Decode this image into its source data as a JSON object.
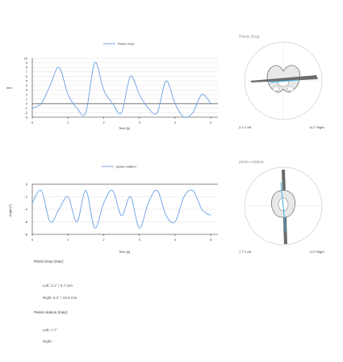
{
  "charts": [
    {
      "legend_label": "Pelvic Drop",
      "ylabel": "mm",
      "xlabel": "Time [s]",
      "x_ticks": [
        "0",
        "1",
        "2",
        "3",
        "4",
        "5"
      ],
      "y_ticks": [
        "10",
        "9",
        "8",
        "7",
        "6",
        "5",
        "4",
        "3",
        "2",
        "1",
        "0",
        "-1",
        "-2",
        "-3"
      ]
    },
    {
      "legend_label": "pelvis rotation",
      "ylabel": "Angle [°]",
      "xlabel": "Time [s]",
      "x_ticks": [
        "0",
        "1",
        "2",
        "3",
        "4",
        "5"
      ],
      "y_ticks": [
        "0",
        "-2",
        "-4",
        "-6",
        "-8"
      ]
    }
  ],
  "chart_data": [
    {
      "type": "line",
      "x": [
        0,
        0.25,
        0.5,
        0.75,
        1,
        1.25,
        1.5,
        1.75,
        2,
        2.25,
        2.5,
        2.75,
        3,
        3.25,
        3.5,
        3.75,
        4,
        4.25,
        4.5,
        4.75,
        5
      ],
      "series": [
        {
          "name": "Pelvic Drop",
          "values": [
            -1,
            0,
            4,
            8,
            2,
            -1,
            -2,
            9,
            3,
            0,
            -2,
            6,
            2,
            -1,
            -2,
            5,
            0,
            -3,
            -2,
            2,
            0
          ]
        }
      ],
      "xlabel": "Time [s]",
      "ylabel": "mm",
      "xlim": [
        0,
        5.2
      ],
      "ylim": [
        -3,
        10
      ]
    },
    {
      "type": "line",
      "x": [
        0,
        0.25,
        0.5,
        0.75,
        1,
        1.25,
        1.5,
        1.75,
        2,
        2.25,
        2.5,
        2.75,
        3,
        3.25,
        3.5,
        3.75,
        4,
        4.25,
        4.5,
        4.75,
        5
      ],
      "series": [
        {
          "name": "pelvis rotation",
          "values": [
            -3,
            -1,
            -6,
            -4,
            -2,
            -6,
            -1,
            -7,
            -3,
            -1,
            -5,
            -2,
            -7,
            -3,
            -1,
            -5,
            -6,
            -2,
            -1,
            -4,
            -5
          ]
        }
      ],
      "xlabel": "Time [s]",
      "ylabel": "Angle [°]",
      "xlim": [
        0,
        5.2
      ],
      "ylim": [
        -8,
        0
      ]
    }
  ],
  "gauges": [
    {
      "title": "Pelvic Drop",
      "left_label": "2.1° Left",
      "right_label": "6.2° Right"
    },
    {
      "title": "pelvis rotation",
      "left_label": "7.7° Left",
      "right_label": "0.0° Right"
    }
  ],
  "stats": {
    "drop_heading": "Pelvic Drop (max):",
    "drop_left": "Left:   2.1°   /  3.7 mm",
    "drop_right": "Right:  6.2°   /  10.9 mm",
    "rot_heading": "Pelvis rotation (max):",
    "rot_left": "Left:   7.7°",
    "rot_right": "Right:  -"
  },
  "colors": {
    "series": "#6aa0e4",
    "gauge_line": "#3db3e6",
    "title": "#999999"
  }
}
